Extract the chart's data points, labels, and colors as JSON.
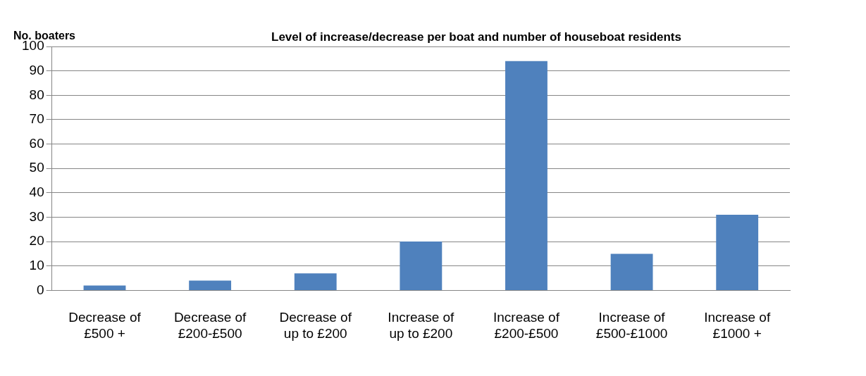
{
  "chart_data": {
    "type": "bar",
    "title": "Level of increase/decrease per boat and number of houseboat residents",
    "ylabel": "No. boaters",
    "categories": [
      "Decrease of £500 +",
      "Decrease of £200-£500",
      "Decrease of up to £200",
      "Increase of up to £200",
      "Increase of £200-£500",
      "Increase of £500-£1000",
      "Increase of £1000 +"
    ],
    "values": [
      2,
      4,
      7,
      20,
      94,
      15,
      31
    ],
    "color": "#4f81bd",
    "ylim": [
      0,
      100
    ],
    "yticks": [
      0,
      10,
      20,
      30,
      40,
      50,
      60,
      70,
      80,
      90,
      100
    ],
    "grid": "y"
  }
}
